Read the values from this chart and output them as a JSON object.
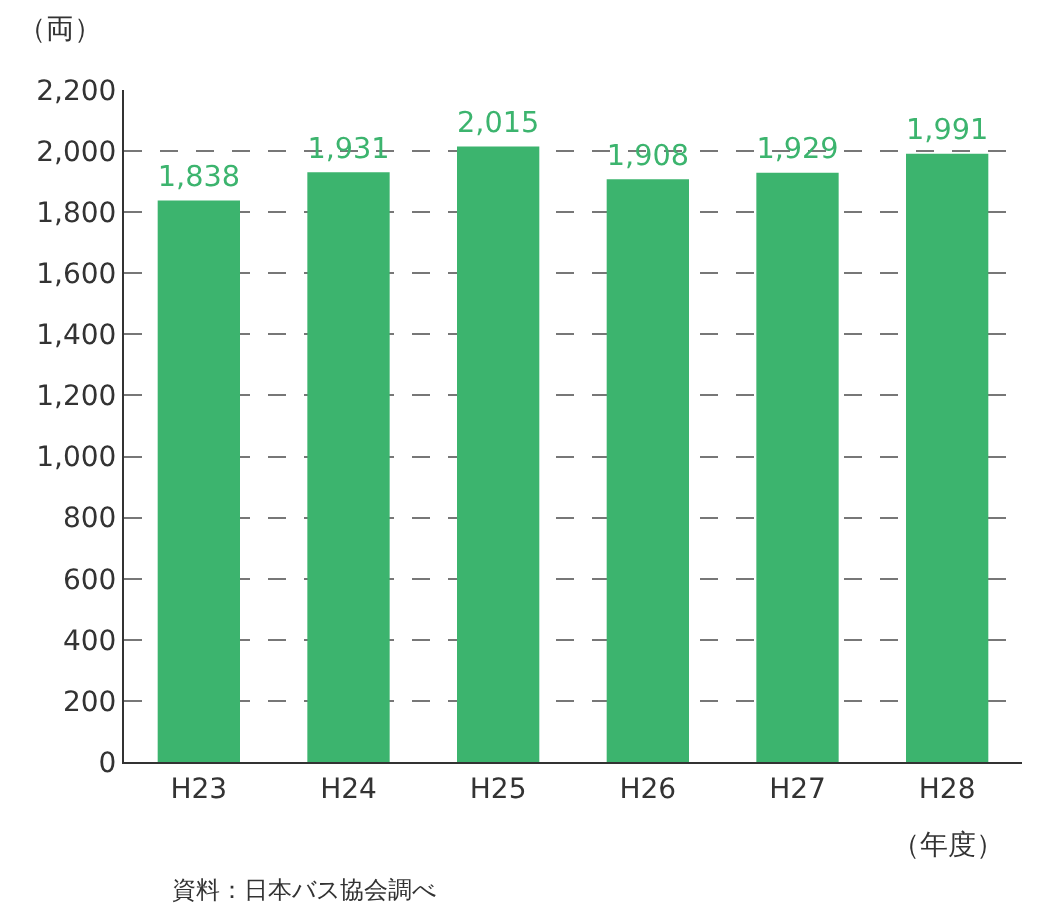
{
  "chart_data": {
    "type": "bar",
    "ylabel": "（両）",
    "xlabel": "（年度）",
    "categories": [
      "H23",
      "H24",
      "H25",
      "H26",
      "H27",
      "H28"
    ],
    "values": [
      1838,
      1931,
      2015,
      1908,
      1929,
      1991
    ],
    "color": "#3cb46e",
    "ylim": [
      0,
      2200
    ],
    "yticks": [
      0,
      {
        "value": 200,
        "label": "200"
      },
      {
        "value": 400,
        "label": "400"
      },
      {
        "value": 600,
        "label": "600"
      },
      {
        "value": 800,
        "label": "800"
      },
      {
        "value": 1000,
        "label": "1,000"
      },
      {
        "value": 1200,
        "label": "1,200"
      },
      {
        "value": 1400,
        "label": "1,400"
      },
      {
        "value": 1600,
        "label": "1,600"
      },
      {
        "value": 1800,
        "label": "1,800"
      },
      {
        "value": 2000,
        "label": "2,000"
      },
      {
        "value": 2200,
        "label": "2,200"
      }
    ],
    "grid": "y",
    "value_labels": [
      "1,838",
      "1,931",
      "2,015",
      "1,908",
      "1,929",
      "1,991"
    ],
    "annotations": [
      "資料：日本バス協会調べ"
    ]
  }
}
